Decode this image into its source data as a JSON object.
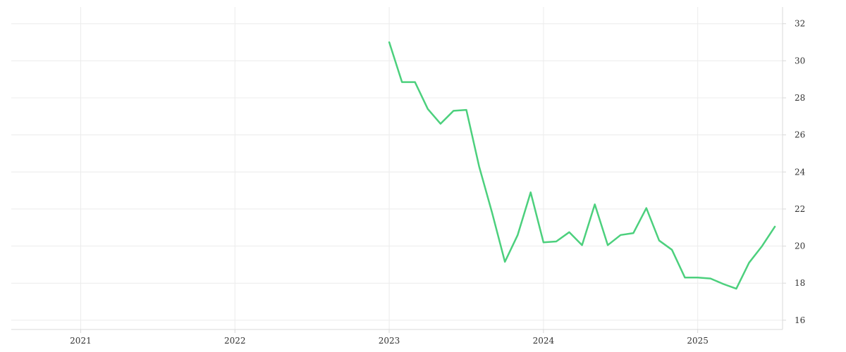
{
  "chart_data": {
    "type": "line",
    "title": "",
    "xlabel": "",
    "ylabel": "",
    "x_ticks": [
      2021,
      2022,
      2023,
      2024,
      2025
    ],
    "y_ticks": [
      16,
      18,
      20,
      22,
      24,
      26,
      28,
      30,
      32
    ],
    "xlim": [
      2020.55,
      2025.55
    ],
    "ylim": [
      15.5,
      32.9
    ],
    "y_axis_side": "right",
    "grid": true,
    "line_color": "#4cd07d",
    "series": [
      {
        "x": [
          2023.0,
          2023.083,
          2023.167,
          2023.25,
          2023.333,
          2023.417,
          2023.5,
          2023.583,
          2023.667,
          2023.75,
          2023.833,
          2023.917,
          2024.0,
          2024.083,
          2024.167,
          2024.25,
          2024.333,
          2024.417,
          2024.5,
          2024.583,
          2024.667,
          2024.75,
          2024.833,
          2024.917,
          2025.0,
          2025.083,
          2025.167,
          2025.25,
          2025.333,
          2025.417,
          2025.5
        ],
        "y": [
          31.0,
          28.85,
          28.85,
          27.4,
          26.6,
          27.3,
          27.35,
          24.3,
          21.8,
          19.15,
          20.6,
          22.9,
          20.2,
          20.25,
          20.75,
          20.05,
          22.25,
          20.05,
          20.6,
          20.7,
          22.05,
          20.3,
          19.8,
          18.3,
          18.3,
          18.25,
          17.95,
          17.7,
          19.1,
          20.0,
          21.05
        ]
      }
    ]
  }
}
